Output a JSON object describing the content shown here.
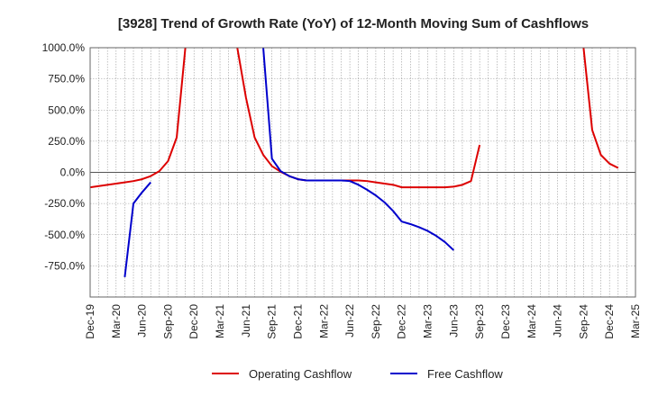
{
  "chart_data": {
    "type": "line",
    "title": "[3928]  Trend of Growth Rate (YoY) of 12-Month Moving Sum of Cashflows",
    "xlabel": "",
    "ylabel": "",
    "ylim": [
      -1000,
      1000
    ],
    "y_ticks": [
      1000,
      750,
      500,
      250,
      0,
      -250,
      -500,
      -750
    ],
    "y_tick_labels": [
      "1000.0%",
      "750.0%",
      "500.0%",
      "250.0%",
      "0.0%",
      "-250.0%",
      "-500.0%",
      "-750.0%"
    ],
    "x_tick_labels": [
      "Dec-19",
      "Mar-20",
      "Jun-20",
      "Sep-20",
      "Dec-20",
      "Mar-21",
      "Jun-21",
      "Sep-21",
      "Dec-21",
      "Mar-22",
      "Jun-22",
      "Sep-22",
      "Dec-22",
      "Mar-23",
      "Jun-23",
      "Sep-23",
      "Dec-23",
      "Mar-24",
      "Jun-24",
      "Sep-24",
      "Dec-24",
      "Mar-25"
    ],
    "grid": true,
    "legend_position": "bottom",
    "series": [
      {
        "name": "Operating Cashflow",
        "color": "#dd0000",
        "points": [
          [
            "Dec-19",
            -120
          ],
          [
            "Jan-20",
            -110
          ],
          [
            "Feb-20",
            -100
          ],
          [
            "Mar-20",
            -90
          ],
          [
            "Apr-20",
            -80
          ],
          [
            "May-20",
            -70
          ],
          [
            "Jun-20",
            -55
          ],
          [
            "Jul-20",
            -30
          ],
          [
            "Aug-20",
            10
          ],
          [
            "Sep-20",
            90
          ],
          [
            "Oct-20",
            280
          ],
          [
            "Nov-20",
            1000
          ],
          null,
          [
            "May-21",
            1000
          ],
          [
            "Jun-21",
            600
          ],
          [
            "Jul-21",
            280
          ],
          [
            "Aug-21",
            140
          ],
          [
            "Sep-21",
            50
          ],
          [
            "Oct-21",
            5
          ],
          [
            "Nov-21",
            -30
          ],
          [
            "Dec-21",
            -55
          ],
          [
            "Jan-22",
            -65
          ],
          [
            "Feb-22",
            -65
          ],
          [
            "Mar-22",
            -65
          ],
          [
            "Apr-22",
            -65
          ],
          [
            "May-22",
            -65
          ],
          [
            "Jun-22",
            -65
          ],
          [
            "Jul-22",
            -65
          ],
          [
            "Aug-22",
            -70
          ],
          [
            "Sep-22",
            -80
          ],
          [
            "Oct-22",
            -90
          ],
          [
            "Nov-22",
            -100
          ],
          [
            "Dec-22",
            -120
          ],
          [
            "Jan-23",
            -120
          ],
          [
            "Feb-23",
            -120
          ],
          [
            "Mar-23",
            -120
          ],
          [
            "Apr-23",
            -120
          ],
          [
            "May-23",
            -120
          ],
          [
            "Jun-23",
            -115
          ],
          [
            "Jul-23",
            -100
          ],
          [
            "Aug-23",
            -70
          ],
          [
            "Sep-23",
            220
          ],
          null,
          [
            "Sep-24",
            1000
          ],
          [
            "Oct-24",
            340
          ],
          [
            "Nov-24",
            140
          ],
          [
            "Dec-24",
            70
          ],
          [
            "Jan-25",
            35
          ]
        ]
      },
      {
        "name": "Free Cashflow",
        "color": "#0000cc",
        "points": [
          [
            "Apr-20",
            -840
          ],
          [
            "May-20",
            -250
          ],
          [
            "Jun-20",
            -160
          ],
          [
            "Jul-20",
            -80
          ],
          null,
          [
            "Aug-21",
            1000
          ],
          [
            "Sep-21",
            110
          ],
          [
            "Oct-21",
            10
          ],
          [
            "Nov-21",
            -30
          ],
          [
            "Dec-21",
            -55
          ],
          [
            "Jan-22",
            -65
          ],
          [
            "Feb-22",
            -65
          ],
          [
            "Mar-22",
            -65
          ],
          [
            "Apr-22",
            -65
          ],
          [
            "May-22",
            -65
          ],
          [
            "Jun-22",
            -70
          ],
          [
            "Jul-22",
            -100
          ],
          [
            "Aug-22",
            -140
          ],
          [
            "Sep-22",
            -185
          ],
          [
            "Oct-22",
            -240
          ],
          [
            "Nov-22",
            -310
          ],
          [
            "Dec-22",
            -395
          ],
          [
            "Jan-23",
            -415
          ],
          [
            "Feb-23",
            -440
          ],
          [
            "Mar-23",
            -470
          ],
          [
            "Apr-23",
            -510
          ],
          [
            "May-23",
            -560
          ],
          [
            "Jun-23",
            -625
          ]
        ]
      }
    ]
  }
}
